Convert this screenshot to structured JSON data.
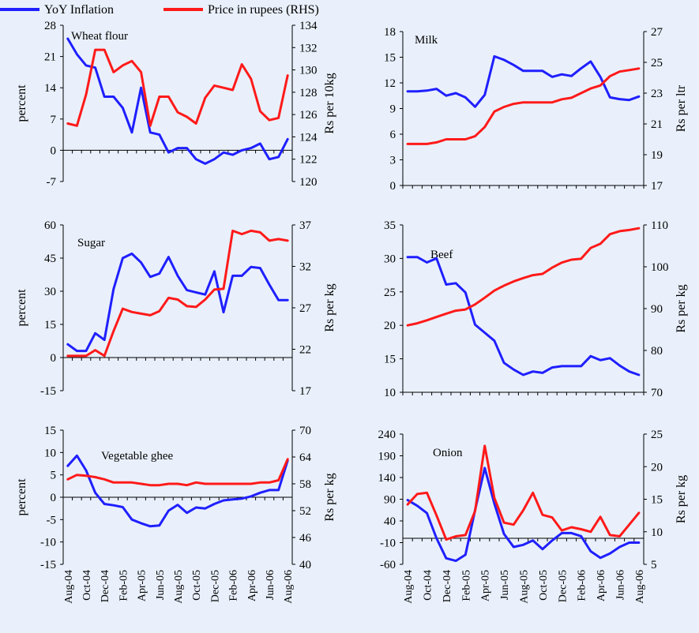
{
  "legend": {
    "yoy_label": "YoY Inflation",
    "price_label": "Price in rupees (RHS)",
    "yoy_color": "#1f1fff",
    "price_color": "#ff1a1a"
  },
  "x_tick_labels": [
    "Aug-04",
    "Oct-04",
    "Dec-04",
    "Feb-05",
    "Apr-05",
    "Jun-05",
    "Aug-05",
    "Oct-05",
    "Dec-05",
    "Feb-06",
    "Apr-06",
    "Jun-06",
    "Aug-06"
  ],
  "chart_data": [
    {
      "type": "line",
      "title": "Wheat flour",
      "ylabel": "percent",
      "y2label": "Rs per 10kg",
      "ylim": [
        -7,
        28
      ],
      "yticks": [
        -7,
        0,
        7,
        14,
        21,
        28
      ],
      "y2lim": [
        120,
        134
      ],
      "y2ticks": [
        120,
        122,
        124,
        126,
        128,
        130,
        132,
        134
      ],
      "x": [
        "Aug-04",
        "Sep-04",
        "Oct-04",
        "Nov-04",
        "Dec-04",
        "Jan-05",
        "Feb-05",
        "Mar-05",
        "Apr-05",
        "May-05",
        "Jun-05",
        "Jul-05",
        "Aug-05",
        "Sep-05",
        "Oct-05",
        "Nov-05",
        "Dec-05",
        "Jan-06",
        "Feb-06",
        "Mar-06",
        "Apr-06",
        "May-06",
        "Jun-06",
        "Jul-06",
        "Aug-06"
      ],
      "series": [
        {
          "name": "YoY Inflation",
          "axis": "left",
          "values": [
            25,
            21.5,
            19,
            18.5,
            12,
            12,
            9.5,
            4,
            14,
            4,
            3.5,
            -0.5,
            0.5,
            0.5,
            -2,
            -3,
            -2,
            -0.5,
            -1,
            0,
            0.5,
            1.5,
            -2,
            -1.5,
            2.5
          ]
        },
        {
          "name": "Price in rupees (RHS)",
          "axis": "right",
          "values": [
            125.2,
            125,
            127.8,
            131.8,
            131.8,
            129.8,
            130.4,
            130.8,
            129.8,
            125,
            127.6,
            127.6,
            126.2,
            125.8,
            125.2,
            127.5,
            128.6,
            128.4,
            128.2,
            130.5,
            129.2,
            126.3,
            125.5,
            125.7,
            129.5
          ]
        }
      ]
    },
    {
      "type": "line",
      "title": "Milk",
      "ylabel": "",
      "y2label": "Rs per ltr",
      "ylim": [
        0,
        18
      ],
      "yticks": [
        0,
        3,
        6,
        9,
        12,
        15,
        18
      ],
      "y2lim": [
        17,
        27
      ],
      "y2ticks": [
        17,
        19,
        21,
        23,
        25,
        27
      ],
      "x": [
        "Aug-04",
        "Sep-04",
        "Oct-04",
        "Nov-04",
        "Dec-04",
        "Jan-05",
        "Feb-05",
        "Mar-05",
        "Apr-05",
        "May-05",
        "Jun-05",
        "Jul-05",
        "Aug-05",
        "Sep-05",
        "Oct-05",
        "Nov-05",
        "Dec-05",
        "Jan-06",
        "Feb-06",
        "Mar-06",
        "Apr-06",
        "May-06",
        "Jun-06",
        "Jul-06",
        "Aug-06"
      ],
      "series": [
        {
          "name": "YoY Inflation",
          "axis": "left",
          "values": [
            11,
            11,
            11.1,
            11.3,
            10.5,
            10.8,
            10.3,
            9.2,
            10.6,
            15.1,
            14.7,
            14.1,
            13.4,
            13.4,
            13.4,
            12.7,
            13,
            12.8,
            13.7,
            14.5,
            12.7,
            10.3,
            10.1,
            10,
            10.4
          ]
        },
        {
          "name": "Price in rupees (RHS)",
          "axis": "right",
          "values": [
            19.7,
            19.7,
            19.7,
            19.8,
            20,
            20,
            20,
            20.2,
            20.8,
            21.8,
            22.1,
            22.3,
            22.4,
            22.4,
            22.4,
            22.4,
            22.6,
            22.7,
            23,
            23.3,
            23.5,
            24.1,
            24.4,
            24.5,
            24.6
          ]
        }
      ]
    },
    {
      "type": "line",
      "title": "Sugar",
      "ylabel": "percent",
      "y2label": "Rs per kg",
      "ylim": [
        -15,
        60
      ],
      "yticks": [
        -15,
        0,
        15,
        30,
        45,
        60
      ],
      "y2lim": [
        17,
        37
      ],
      "y2ticks": [
        17,
        22,
        27,
        32,
        37
      ],
      "x": [
        "Aug-04",
        "Sep-04",
        "Oct-04",
        "Nov-04",
        "Dec-04",
        "Jan-05",
        "Feb-05",
        "Mar-05",
        "Apr-05",
        "May-05",
        "Jun-05",
        "Jul-05",
        "Aug-05",
        "Sep-05",
        "Oct-05",
        "Nov-05",
        "Dec-05",
        "Jan-06",
        "Feb-06",
        "Mar-06",
        "Apr-06",
        "May-06",
        "Jun-06",
        "Jul-06",
        "Aug-06"
      ],
      "series": [
        {
          "name": "YoY Inflation",
          "axis": "left",
          "values": [
            6,
            3,
            3,
            11,
            8,
            31,
            45,
            47,
            43,
            36.5,
            38,
            45.5,
            37,
            30.5,
            29.5,
            28.5,
            39,
            20.5,
            37,
            37,
            41,
            40.5,
            33,
            26,
            26
          ]
        },
        {
          "name": "Price in rupees (RHS)",
          "axis": "right",
          "values": [
            21.2,
            21.2,
            21.2,
            21.9,
            21.2,
            24.2,
            26.9,
            26.5,
            26.3,
            26.1,
            26.6,
            28.2,
            28,
            27.2,
            27.1,
            28,
            29.2,
            29.3,
            36.3,
            35.9,
            36.3,
            36.1,
            35.1,
            35.3,
            35.1
          ]
        }
      ]
    },
    {
      "type": "line",
      "title": "Beef",
      "ylabel": "",
      "y2label": "Rs per kg",
      "ylim": [
        10,
        35
      ],
      "yticks": [
        10,
        15,
        20,
        25,
        30,
        35
      ],
      "y2lim": [
        70,
        110
      ],
      "y2ticks": [
        70,
        80,
        90,
        100,
        110
      ],
      "x": [
        "Aug-04",
        "Sep-04",
        "Oct-04",
        "Nov-04",
        "Dec-04",
        "Jan-05",
        "Feb-05",
        "Mar-05",
        "Apr-05",
        "May-05",
        "Jun-05",
        "Jul-05",
        "Aug-05",
        "Sep-05",
        "Oct-05",
        "Nov-05",
        "Dec-05",
        "Jan-06",
        "Feb-06",
        "Mar-06",
        "Apr-06",
        "May-06",
        "Jun-06",
        "Jul-06",
        "Aug-06"
      ],
      "series": [
        {
          "name": "YoY Inflation",
          "axis": "left",
          "values": [
            30.2,
            30.2,
            29.4,
            30,
            26.1,
            26.3,
            24.9,
            20.1,
            18.9,
            17.7,
            14.4,
            13.4,
            12.6,
            13.1,
            12.9,
            13.7,
            13.9,
            13.9,
            13.9,
            15.4,
            14.8,
            15.1,
            14,
            13.1,
            12.6
          ]
        },
        {
          "name": "Price in rupees (RHS)",
          "axis": "right",
          "values": [
            86,
            86.5,
            87.2,
            88,
            88.8,
            89.5,
            89.8,
            91,
            92.6,
            94.3,
            95.5,
            96.5,
            97.3,
            98,
            98.3,
            99.8,
            101,
            101.7,
            101.9,
            104.5,
            105.5,
            107.8,
            108.5,
            108.8,
            109.2
          ]
        }
      ]
    },
    {
      "type": "line",
      "title": "Vegetable ghee",
      "ylabel": "percent",
      "y2label": "Rs per kg",
      "ylim": [
        -15,
        15
      ],
      "yticks": [
        -15,
        -10,
        -5,
        0,
        5,
        10,
        15
      ],
      "y2lim": [
        40,
        70
      ],
      "y2ticks": [
        40,
        46,
        52,
        58,
        64,
        70
      ],
      "x": [
        "Aug-04",
        "Sep-04",
        "Oct-04",
        "Nov-04",
        "Dec-04",
        "Jan-05",
        "Feb-05",
        "Mar-05",
        "Apr-05",
        "May-05",
        "Jun-05",
        "Jul-05",
        "Aug-05",
        "Sep-05",
        "Oct-05",
        "Nov-05",
        "Dec-05",
        "Jan-06",
        "Feb-06",
        "Mar-06",
        "Apr-06",
        "May-06",
        "Jun-06",
        "Jul-06",
        "Aug-06"
      ],
      "series": [
        {
          "name": "YoY Inflation",
          "axis": "left",
          "values": [
            7,
            9.3,
            6,
            1,
            -1.5,
            -1.8,
            -2.2,
            -5,
            -5.8,
            -6.5,
            -6.3,
            -3,
            -1.7,
            -3.5,
            -2.3,
            -2.5,
            -1.5,
            -0.7,
            -0.5,
            -0.3,
            0.2,
            1,
            1.6,
            1.6,
            8.2
          ]
        },
        {
          "name": "Price in rupees (RHS)",
          "axis": "right",
          "values": [
            59,
            60,
            59.8,
            59.5,
            59,
            58.3,
            58.3,
            58.3,
            58,
            57.7,
            57.7,
            58,
            58,
            57.7,
            58.3,
            58,
            58,
            58,
            58,
            58,
            58,
            58.3,
            58.3,
            58.8,
            63.5
          ]
        }
      ]
    },
    {
      "type": "line",
      "title": "Onion",
      "ylabel": "",
      "y2label": "Rs per kg",
      "ylim": [
        -60,
        240
      ],
      "yticks": [
        -60,
        -10,
        40,
        90,
        140,
        190,
        240
      ],
      "y2lim": [
        5,
        25
      ],
      "y2ticks": [
        5,
        10,
        15,
        20,
        25
      ],
      "x": [
        "Aug-04",
        "Sep-04",
        "Oct-04",
        "Nov-04",
        "Dec-04",
        "Jan-05",
        "Feb-05",
        "Mar-05",
        "Apr-05",
        "May-05",
        "Jun-05",
        "Jul-05",
        "Aug-05",
        "Sep-05",
        "Oct-05",
        "Nov-05",
        "Dec-05",
        "Jan-06",
        "Feb-06",
        "Mar-06",
        "Apr-06",
        "May-06",
        "Jun-06",
        "Jul-06",
        "Aug-06"
      ],
      "series": [
        {
          "name": "YoY Inflation",
          "axis": "left",
          "values": [
            88,
            75,
            58,
            0,
            -46,
            -52,
            -38,
            65,
            162,
            80,
            10,
            -20,
            -15,
            -5,
            -25,
            -5,
            12,
            12,
            5,
            -30,
            -45,
            -35,
            -20,
            -10,
            -10
          ]
        },
        {
          "name": "Price in rupees (RHS)",
          "axis": "right",
          "values": [
            14.2,
            15.8,
            16,
            12.5,
            8.8,
            9.3,
            9.5,
            13.2,
            23.2,
            15.2,
            11.4,
            11.1,
            13.3,
            16,
            12.6,
            12.2,
            10.2,
            10.7,
            10.4,
            10,
            12.3,
            9.5,
            9.3,
            11.1,
            12.9
          ]
        }
      ]
    }
  ]
}
